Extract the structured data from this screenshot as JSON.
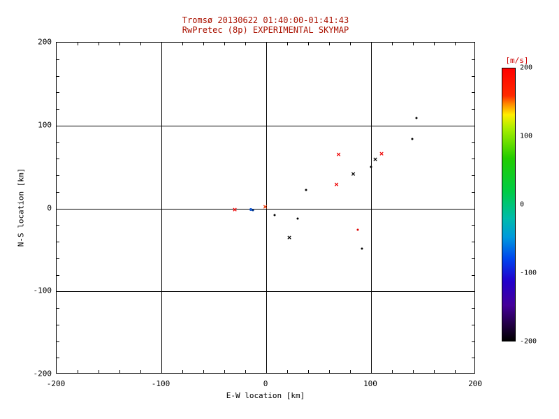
{
  "chart_data": {
    "type": "scatter",
    "title": "Tromsø 20130622 01:40:00-01:41:43",
    "subtitle": "RwPretec (8p) EXPERIMENTAL SKYMAP",
    "xlabel": "E-W location [km]",
    "ylabel": "N-S location [km]",
    "xlim": [
      -200,
      200
    ],
    "ylim": [
      -200,
      200
    ],
    "x_ticks": [
      -200,
      -100,
      0,
      100,
      200
    ],
    "y_ticks": [
      -200,
      -100,
      0,
      100,
      200
    ],
    "grid": true,
    "background": "#ffffff",
    "axis_color": "#000000",
    "title_color": "#aa1100",
    "points": [
      {
        "x": 143,
        "y": 109,
        "marker": "dot",
        "color": "#000000",
        "size": 3
      },
      {
        "x": 139,
        "y": 84,
        "marker": "dot",
        "color": "#000000",
        "size": 3
      },
      {
        "x": 110,
        "y": 66,
        "marker": "x",
        "color": "#ee0000"
      },
      {
        "x": 104,
        "y": 59,
        "marker": "x",
        "color": "#000000"
      },
      {
        "x": 100,
        "y": 50,
        "marker": "dot",
        "color": "#000000",
        "size": 3
      },
      {
        "x": 83,
        "y": 42,
        "marker": "x",
        "color": "#000000"
      },
      {
        "x": 69,
        "y": 65,
        "marker": "x",
        "color": "#ee0000"
      },
      {
        "x": 67,
        "y": 29,
        "marker": "x",
        "color": "#ee0000"
      },
      {
        "x": 38,
        "y": 22,
        "marker": "dot",
        "color": "#000000",
        "size": 3
      },
      {
        "x": -1,
        "y": 2,
        "marker": "x",
        "color": "#ee3300"
      },
      {
        "x": -15,
        "y": -1,
        "marker": "dot",
        "color": "#1155cc",
        "size": 4
      },
      {
        "x": -13,
        "y": -2,
        "marker": "dot",
        "color": "#003388",
        "size": 3
      },
      {
        "x": -30,
        "y": -1,
        "marker": "x",
        "color": "#ee0000"
      },
      {
        "x": 8,
        "y": -8,
        "marker": "dot",
        "color": "#000000",
        "size": 3
      },
      {
        "x": 30,
        "y": -12,
        "marker": "dot",
        "color": "#000000",
        "size": 3
      },
      {
        "x": 22,
        "y": -35,
        "marker": "x",
        "color": "#000000"
      },
      {
        "x": 87,
        "y": -26,
        "marker": "dot",
        "color": "#dd0000",
        "size": 3
      },
      {
        "x": 91,
        "y": -48,
        "marker": "dot",
        "color": "#000000",
        "size": 3
      }
    ],
    "colorbar": {
      "title": "[m/s]",
      "title_color": "#cc0000",
      "min": -200,
      "max": 200,
      "ticks": [
        200,
        100,
        0,
        -100,
        -200
      ],
      "stops": [
        {
          "pos": 0.0,
          "color": "#ff0000"
        },
        {
          "pos": 0.1,
          "color": "#ff2a00"
        },
        {
          "pos": 0.13,
          "color": "#ff8800"
        },
        {
          "pos": 0.17,
          "color": "#ffee00"
        },
        {
          "pos": 0.22,
          "color": "#aaee00"
        },
        {
          "pos": 0.33,
          "color": "#22cc00"
        },
        {
          "pos": 0.45,
          "color": "#00cc44"
        },
        {
          "pos": 0.55,
          "color": "#00bbaa"
        },
        {
          "pos": 0.62,
          "color": "#0099dd"
        },
        {
          "pos": 0.7,
          "color": "#0044ee"
        },
        {
          "pos": 0.78,
          "color": "#2200cc"
        },
        {
          "pos": 0.87,
          "color": "#440099"
        },
        {
          "pos": 0.94,
          "color": "#220044"
        },
        {
          "pos": 1.0,
          "color": "#000000"
        }
      ]
    }
  }
}
